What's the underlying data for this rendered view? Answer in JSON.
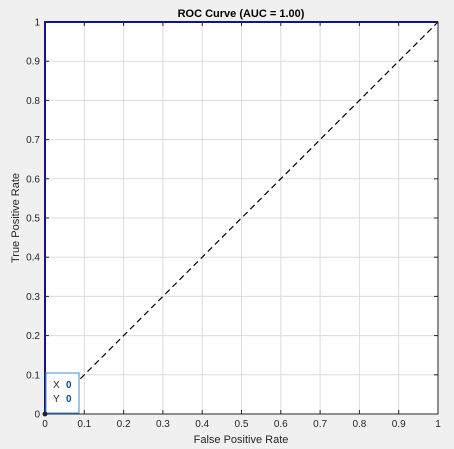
{
  "chart_data": {
    "type": "line",
    "title": "ROC Curve (AUC = 1.00)",
    "xlabel": "False Positive Rate",
    "ylabel": "True Positive Rate",
    "xlim": [
      0,
      1
    ],
    "ylim": [
      0,
      1
    ],
    "xticks": [
      "0",
      "0.1",
      "0.2",
      "0.3",
      "0.4",
      "0.5",
      "0.6",
      "0.7",
      "0.8",
      "0.9",
      "1"
    ],
    "yticks": [
      "0",
      "0.1",
      "0.2",
      "0.3",
      "0.4",
      "0.5",
      "0.6",
      "0.7",
      "0.8",
      "0.9",
      "1"
    ],
    "grid": true,
    "series": [
      {
        "style": "solid",
        "color": "#0000ff",
        "x": [
          0,
          0,
          1
        ],
        "y": [
          0,
          1,
          1
        ]
      },
      {
        "style": "dashed",
        "color": "#000000",
        "x": [
          0,
          1
        ],
        "y": [
          0,
          1
        ]
      }
    ],
    "datatip": {
      "x_label": "X",
      "x_value": "0",
      "y_label": "Y",
      "y_value": "0",
      "point": [
        0,
        0
      ]
    }
  }
}
